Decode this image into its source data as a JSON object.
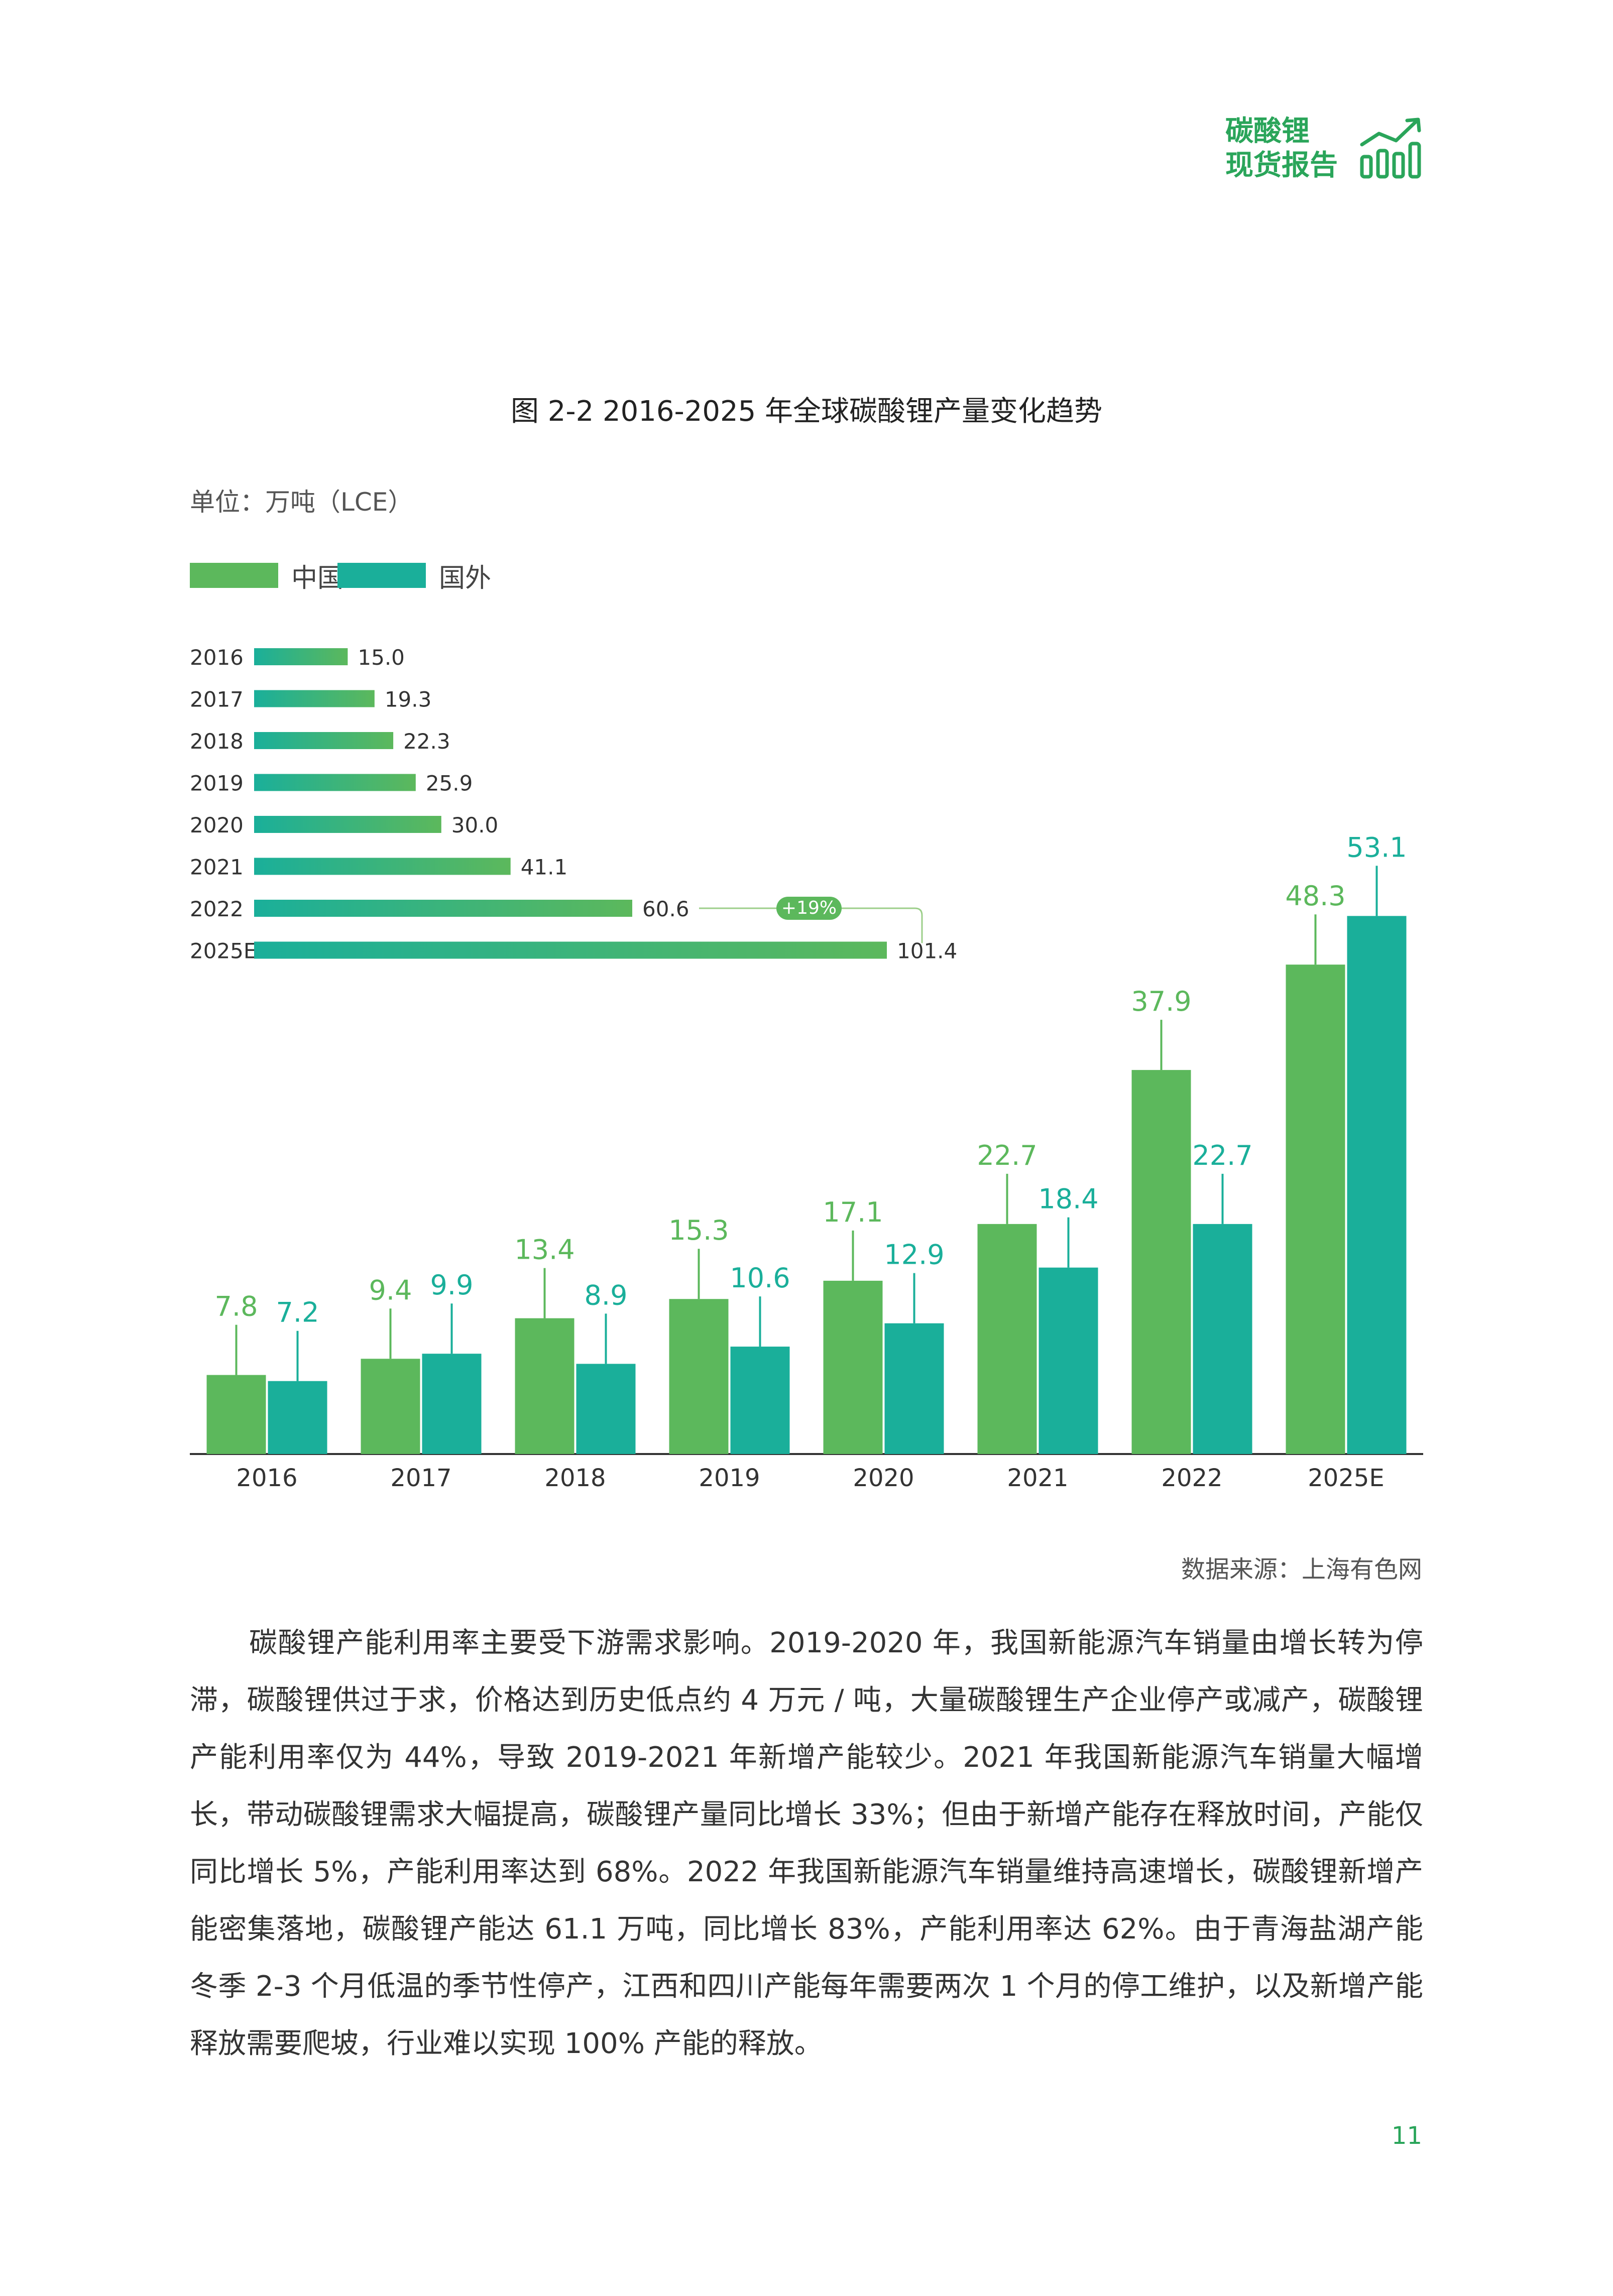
{
  "header": {
    "logo_line1": "碳酸锂",
    "logo_line2": "现货报告",
    "logo_icon": "bar-chart-trend-icon",
    "brand_color": "#2aa55a"
  },
  "figure": {
    "title": "图 2-2 2016-2025 年全球碳酸锂产量变化趋势",
    "unit": "单位：万吨（LCE）",
    "legend": [
      {
        "label": "中国",
        "color": "#5cb85c"
      },
      {
        "label": "国外",
        "color": "#1aaf9a"
      }
    ],
    "source": "数据来源：上海有色网"
  },
  "chart_data": [
    {
      "type": "bar",
      "orientation": "vertical",
      "categories": [
        "2016",
        "2017",
        "2018",
        "2019",
        "2020",
        "2021",
        "2022",
        "2025E"
      ],
      "series": [
        {
          "name": "中国",
          "color": "#5cb85c",
          "values": [
            7.8,
            9.4,
            13.4,
            15.3,
            17.1,
            22.7,
            37.9,
            48.3
          ],
          "labels": [
            "7.8",
            "9.4",
            "13.4",
            "15.3",
            "17.1",
            "22.7",
            "37.9",
            "48.3"
          ]
        },
        {
          "name": "国外",
          "color": "#1aaf9a",
          "values": [
            7.2,
            9.9,
            8.9,
            10.6,
            12.9,
            18.4,
            22.7,
            53.1
          ],
          "labels": [
            "7.2",
            "9.9",
            "8.9",
            "10.6",
            "12.9",
            "18.4",
            "22.7",
            "53.1"
          ]
        }
      ],
      "ylim": [
        0,
        55
      ]
    },
    {
      "type": "bar",
      "orientation": "horizontal",
      "categories": [
        "2016",
        "2017",
        "2018",
        "2019",
        "2020",
        "2021",
        "2022",
        "2025E"
      ],
      "values": [
        15.0,
        19.3,
        22.3,
        25.9,
        30.0,
        41.1,
        60.6,
        101.4
      ],
      "labels": [
        "15.0",
        "19.3",
        "22.3",
        "25.9",
        "30.0",
        "41.1",
        "60.6",
        "101.4"
      ],
      "annotation": "+19%",
      "xlim": [
        0,
        101.4
      ]
    }
  ],
  "body": {
    "paragraph": "碳酸锂产能利用率主要受下游需求影响。2019-2020 年，我国新能源汽车销量由增长转为停滞，碳酸锂供过于求，价格达到历史低点约 4 万元 / 吨，大量碳酸锂生产企业停产或减产，碳酸锂产能利用率仅为 44%，导致 2019-2021 年新增产能较少。2021 年我国新能源汽车销量大幅增长，带动碳酸锂需求大幅提高，碳酸锂产量同比增长 33%；但由于新增产能存在释放时间，产能仅同比增长 5%，产能利用率达到 68%。2022 年我国新能源汽车销量维持高速增长，碳酸锂新增产能密集落地，碳酸锂产能达 61.1 万吨，同比增长 83%，产能利用率达 62%。由于青海盐湖产能冬季 2-3 个月低温的季节性停产，江西和四川产能每年需要两次 1 个月的停工维护，以及新增产能释放需要爬坡，行业难以实现 100% 产能的释放。"
  },
  "page_number": "11"
}
